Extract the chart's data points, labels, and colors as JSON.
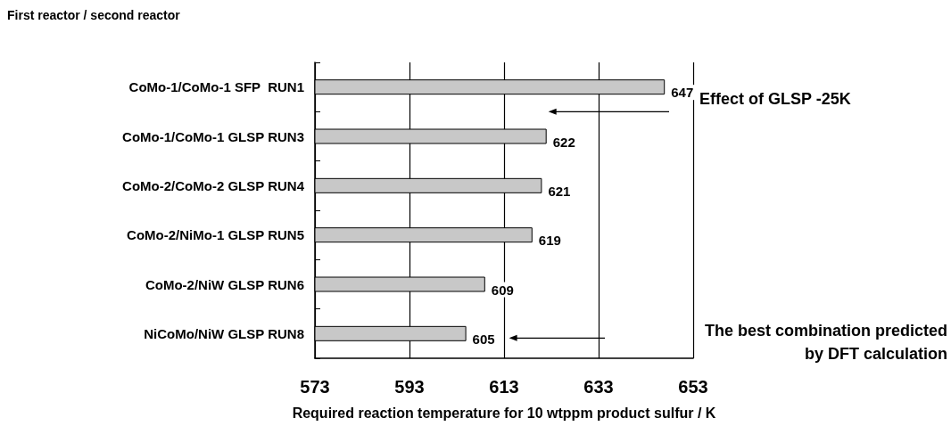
{
  "chart_data": {
    "type": "bar",
    "orientation": "horizontal",
    "ylabel": "First reactor / second reactor",
    "xlabel": "Required reaction temperature for 10 wtppm product sulfur / K",
    "categories": [
      "CoMo-1/CoMo-1 SFP  RUN1",
      "CoMo-1/CoMo-1 GLSP RUN3",
      "CoMo-2/CoMo-2 GLSP RUN4",
      "CoMo-2/NiMo-1 GLSP RUN5",
      "CoMo-2/NiW GLSP RUN6",
      "NiCoMo/NiW GLSP RUN8"
    ],
    "values": [
      647,
      622,
      621,
      619,
      609,
      605
    ],
    "color": "#c8c8c8",
    "data_labels": true,
    "xlim": [
      573,
      653
    ],
    "xticks": [
      573,
      593,
      613,
      633,
      653
    ],
    "grid": "x",
    "annotations": [
      "Effect of GLSP -25K",
      "The best combination predicted\nby DFT calculation"
    ]
  }
}
